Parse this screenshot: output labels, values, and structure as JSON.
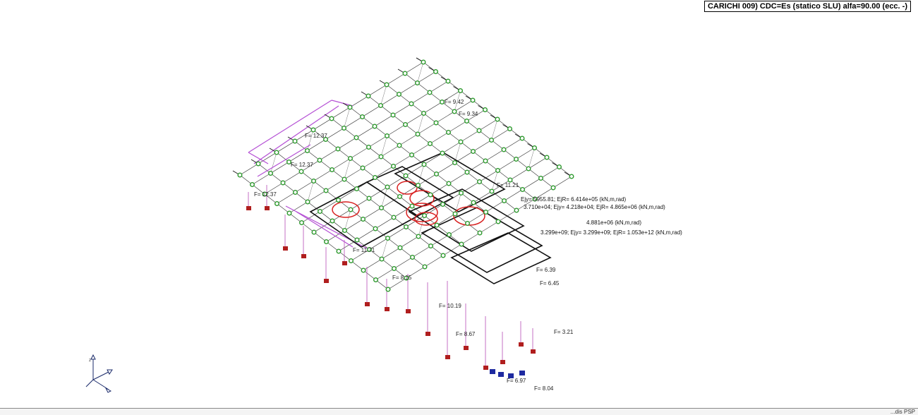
{
  "header": {
    "title": "CARICHI   009) CDC=Es (statico SLU)  alfa=90.00 (ecc. -)"
  },
  "annotations": [
    "Ejy= 5955.81; EjR= 6.414e+05  (kN,m,rad)",
    "3.710e+04; Ejy= 4.218e+04; EjR= 4.865e+06  (kN,m,rad)",
    "4.881e+06  (kN,m,rad)",
    "3.299e+09; Ejy= 3.299e+09; EjR= 1.053e+12  (kN,m,rad)"
  ],
  "node_labels": [
    "F= 12.37",
    "F= 12.37",
    "F= 12.37",
    "F= 9.42",
    "F= 11.71",
    "F= 8.15",
    "F= 6.97",
    "F= 8.04",
    "F= 3.21",
    "F= 6.39",
    "F= 10.19",
    "F= 8.67",
    "F= 6.45",
    "F= 9.34",
    "F= 11.21"
  ],
  "statusbar": {
    "tag": "...dis PSP"
  },
  "colors": {
    "mesh": "#2a2a2a",
    "beam_purple": "#b44fd4",
    "node_green": "#2e9a2e",
    "support_red": "#b01e1e",
    "support_blue": "#1e2aa0",
    "ellipse_red": "#d82020",
    "load_pink": "#c060c0"
  }
}
